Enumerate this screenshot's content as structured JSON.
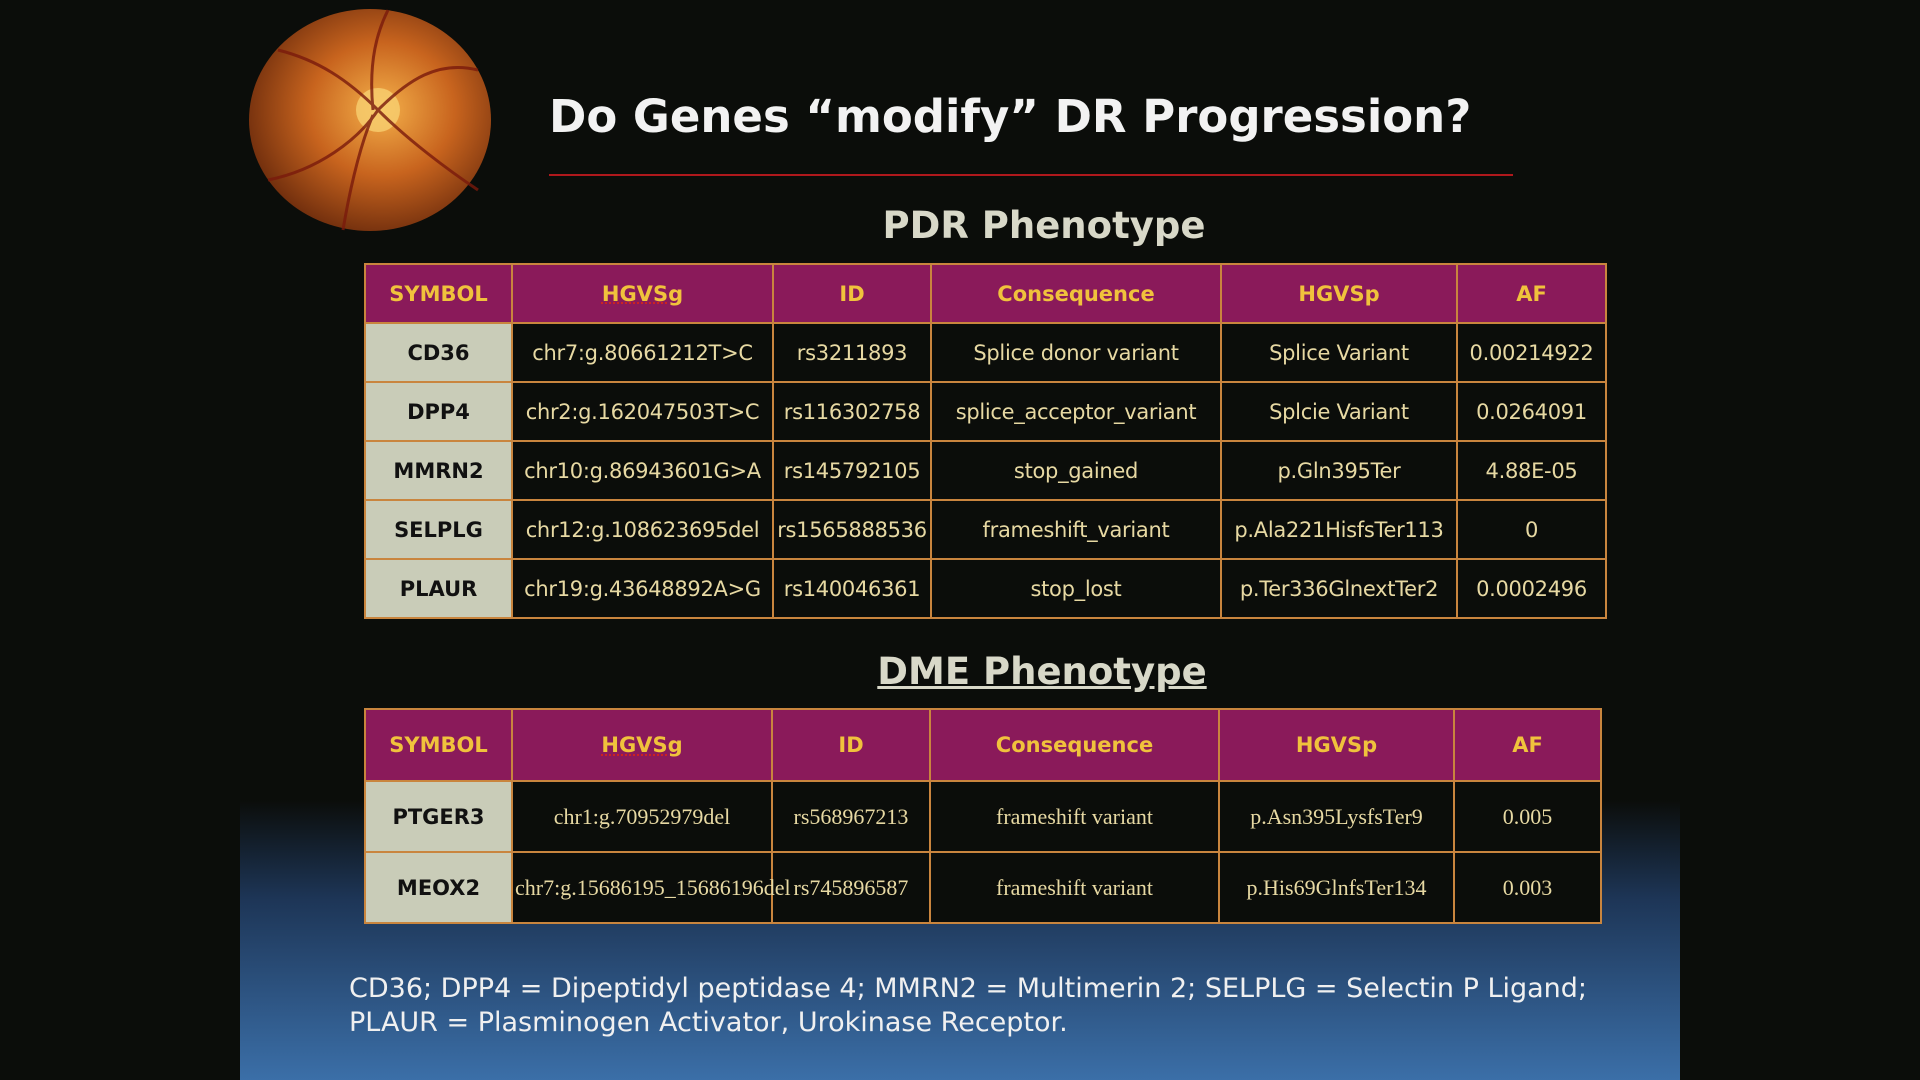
{
  "header": {
    "title": "Do Genes “modify” DR Progression?"
  },
  "tables": [
    {
      "title": "PDR Phenotype",
      "columns": [
        "SYMBOL",
        "HGVSg",
        "ID",
        "Consequence",
        "HGVSp",
        "AF"
      ],
      "rows": [
        [
          "CD36",
          "chr7:g.80661212T>C",
          "rs3211893",
          "Splice donor variant",
          "Splice Variant",
          "0.00214922"
        ],
        [
          "DPP4",
          "chr2:g.162047503T>C",
          "rs116302758",
          "splice_acceptor_variant",
          "Splcie Variant",
          "0.0264091"
        ],
        [
          "MMRN2",
          "chr10:g.86943601G>A",
          "rs145792105",
          "stop_gained",
          "p.Gln395Ter",
          "4.88E-05"
        ],
        [
          "SELPLG",
          "chr12:g.108623695del",
          "rs1565888536",
          "frameshift_variant",
          "p.Ala221HisfsTer113",
          "0"
        ],
        [
          "PLAUR",
          "chr19:g.43648892A>G",
          "rs140046361",
          "stop_lost",
          "p.Ter336GlnextTer2",
          "0.0002496"
        ]
      ]
    },
    {
      "title": "DME Phenotype",
      "columns": [
        "SYMBOL",
        "HGVSg",
        "ID",
        "Consequence",
        "HGVSp",
        "AF"
      ],
      "rows": [
        [
          "PTGER3",
          "chr1:g.70952979del",
          "rs568967213",
          "frameshift variant",
          "p.Asn395LysfsTer9",
          "0.005"
        ],
        [
          "MEOX2",
          "chr7:g.15686195_15686196del",
          "rs745896587",
          "frameshift variant",
          "p.His69GlnfsTer134",
          "0.003"
        ]
      ]
    }
  ],
  "footnote": [
    "CD36; DPP4 = Dipeptidyl peptidase 4; MMRN2 = Multimerin 2; SELPLG = Selectin P Ligand;",
    "PLAUR = Plasminogen Activator, Urokinase Receptor."
  ]
}
